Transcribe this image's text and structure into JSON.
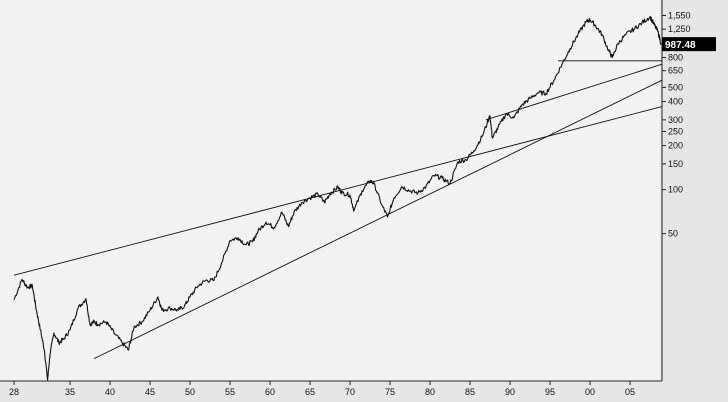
{
  "chart_data": {
    "type": "line",
    "title": "",
    "xlabel": "",
    "ylabel": "",
    "y_scale": "log",
    "xlim": [
      1928,
      2009
    ],
    "ylim": [
      5,
      1800
    ],
    "grid": false,
    "x_ticks": [
      {
        "value": 1928,
        "label": "28"
      },
      {
        "value": 1935,
        "label": "35"
      },
      {
        "value": 1940,
        "label": "40"
      },
      {
        "value": 1945,
        "label": "45"
      },
      {
        "value": 1950,
        "label": "50"
      },
      {
        "value": 1955,
        "label": "55"
      },
      {
        "value": 1960,
        "label": "60"
      },
      {
        "value": 1965,
        "label": "65"
      },
      {
        "value": 1970,
        "label": "70"
      },
      {
        "value": 1975,
        "label": "75"
      },
      {
        "value": 1980,
        "label": "80"
      },
      {
        "value": 1985,
        "label": "85"
      },
      {
        "value": 1990,
        "label": "90"
      },
      {
        "value": 1995,
        "label": "95"
      },
      {
        "value": 2000,
        "label": "00"
      },
      {
        "value": 2005,
        "label": "05"
      }
    ],
    "y_ticks": [
      {
        "value": 1550,
        "label": "1,550"
      },
      {
        "value": 1250,
        "label": "1,250"
      },
      {
        "value": 800,
        "label": "800"
      },
      {
        "value": 650,
        "label": "650"
      },
      {
        "value": 500,
        "label": "500"
      },
      {
        "value": 400,
        "label": "400"
      },
      {
        "value": 300,
        "label": "300"
      },
      {
        "value": 250,
        "label": "250"
      },
      {
        "value": 200,
        "label": "200"
      },
      {
        "value": 150,
        "label": "150"
      },
      {
        "value": 100,
        "label": "100"
      },
      {
        "value": 50,
        "label": "50"
      }
    ],
    "last_value": {
      "value": 987.48,
      "label": "987.48",
      "x": 2008.9
    },
    "series": [
      {
        "values_x": [
          1928.0,
          1929.0,
          1929.7,
          1930.3,
          1930.8,
          1931.3,
          1931.8,
          1932.2,
          1932.5,
          1933.0,
          1933.6,
          1934.2,
          1935.0,
          1936.0,
          1937.0,
          1937.5,
          1938.0,
          1938.5,
          1939.5,
          1940.5,
          1941.5,
          1942.3,
          1943.0,
          1944.0,
          1945.0,
          1946.0,
          1946.5,
          1947.5,
          1948.5,
          1949.3,
          1950.0,
          1951.0,
          1952.0,
          1953.0,
          1954.0,
          1955.0,
          1956.0,
          1957.0,
          1957.8,
          1958.5,
          1959.5,
          1960.5,
          1961.5,
          1962.3,
          1963.0,
          1964.0,
          1965.0,
          1966.0,
          1966.8,
          1967.5,
          1968.5,
          1969.0,
          1970.0,
          1970.5,
          1971.5,
          1972.5,
          1973.0,
          1974.0,
          1974.7,
          1975.5,
          1976.5,
          1977.5,
          1978.5,
          1979.5,
          1980.5,
          1981.5,
          1982.5,
          1983.5,
          1984.5,
          1985.5,
          1986.5,
          1987.5,
          1987.8,
          1988.5,
          1989.5,
          1990.5,
          1991.5,
          1992.5,
          1993.5,
          1994.5,
          1995.5,
          1996.5,
          1997.5,
          1998.5,
          1999.5,
          2000.0,
          2000.7,
          2001.5,
          2002.3,
          2002.8,
          2003.5,
          2004.5,
          2005.5,
          2006.5,
          2007.5,
          2008.0,
          2008.5,
          2008.9
        ],
        "values": [
          17.7,
          24.3,
          21.5,
          22.0,
          15.0,
          11.0,
          8.0,
          5.0,
          7.5,
          10.5,
          9.0,
          9.5,
          11.0,
          15.5,
          18.0,
          12.0,
          12.5,
          12.0,
          12.5,
          10.5,
          9.0,
          8.0,
          11.5,
          12.5,
          15.0,
          18.5,
          15.0,
          15.5,
          15.0,
          16.0,
          18.5,
          22.0,
          24.0,
          24.0,
          32.0,
          45.0,
          47.0,
          42.0,
          44.0,
          52.0,
          60.0,
          55.0,
          70.0,
          56.0,
          70.0,
          82.0,
          88.0,
          93.0,
          82.0,
          94.0,
          104.0,
          95.0,
          92.0,
          72.0,
          98.0,
          115.0,
          110.0,
          78.0,
          65.0,
          88.0,
          105.0,
          98.0,
          95.0,
          105.0,
          125.0,
          120.0,
          110.0,
          155.0,
          160.0,
          185.0,
          230.0,
          320.0,
          225.0,
          265.0,
          330.0,
          310.0,
          380.0,
          420.0,
          460.0,
          455.0,
          560.0,
          720.0,
          920.0,
          1150.0,
          1400.0,
          1450.0,
          1320.0,
          1150.0,
          900.0,
          800.0,
          1000.0,
          1150.0,
          1250.0,
          1380.0,
          1520.0,
          1350.0,
          1200.0,
          987.48
        ]
      }
    ],
    "trendlines": [
      {
        "from": [
          1928.0,
          26.0
        ],
        "to": [
          2009.0,
          370.0
        ]
      },
      {
        "from": [
          1938.0,
          7.0
        ],
        "to": [
          2009.0,
          560.0
        ]
      },
      {
        "from": [
          1987.0,
          300.0
        ],
        "to": [
          2009.0,
          720.0
        ]
      },
      {
        "from": [
          1996.0,
          760.0
        ],
        "to": [
          2009.0,
          760.0
        ]
      }
    ]
  }
}
